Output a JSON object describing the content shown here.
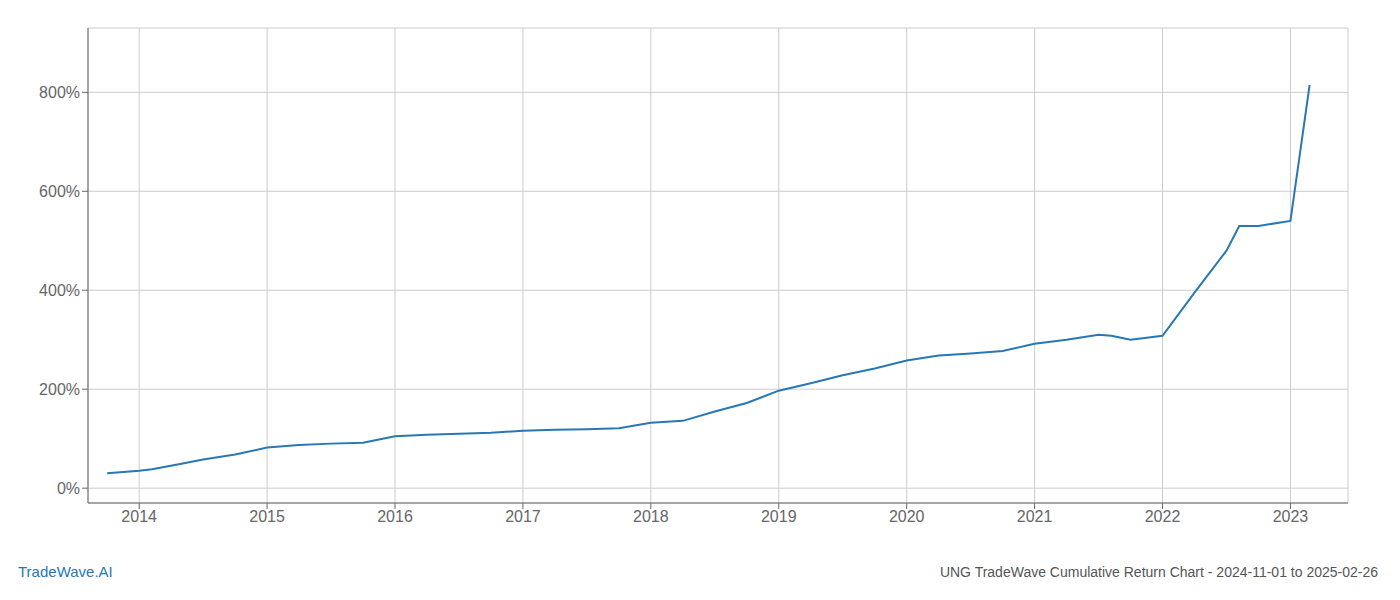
{
  "chart_data": {
    "type": "line",
    "title": "UNG TradeWave Cumulative Return Chart - 2024-11-01 to 2025-02-26",
    "annotations": [
      {
        "text": "TradeWave.AI",
        "color": "#2878b5"
      }
    ],
    "color": "#2878b5",
    "grid": true,
    "x": [
      2013.75,
      2014.0,
      2014.1,
      2014.3,
      2014.5,
      2014.75,
      2015.0,
      2015.25,
      2015.5,
      2015.75,
      2016.0,
      2016.25,
      2016.5,
      2016.75,
      2017.0,
      2017.25,
      2017.5,
      2017.75,
      2018.0,
      2018.25,
      2018.5,
      2018.75,
      2019.0,
      2019.25,
      2019.5,
      2019.75,
      2020.0,
      2020.25,
      2020.5,
      2020.75,
      2021.0,
      2021.25,
      2021.5,
      2021.6,
      2021.75,
      2022.0,
      2022.25,
      2022.5,
      2022.6,
      2022.75,
      2023.0,
      2023.15
    ],
    "values": [
      30,
      35,
      38,
      48,
      58,
      68,
      82,
      87,
      90,
      92,
      105,
      108,
      110,
      112,
      116,
      118,
      119,
      121,
      132,
      136,
      155,
      172,
      197,
      212,
      228,
      242,
      258,
      268,
      272,
      277,
      292,
      300,
      310,
      308,
      300,
      308,
      395,
      480,
      530,
      530,
      540,
      815
    ],
    "xlim": [
      2013.6,
      2023.45
    ],
    "xticks": [
      2014,
      2015,
      2016,
      2017,
      2018,
      2019,
      2020,
      2021,
      2022,
      2023
    ],
    "ylim": [
      -30,
      930
    ],
    "yticks": [
      {
        "value": 0,
        "label": "0%"
      },
      {
        "value": 200,
        "label": "200%"
      },
      {
        "value": 400,
        "label": "400%"
      },
      {
        "value": 600,
        "label": "600%"
      },
      {
        "value": 800,
        "label": "800%"
      }
    ]
  }
}
